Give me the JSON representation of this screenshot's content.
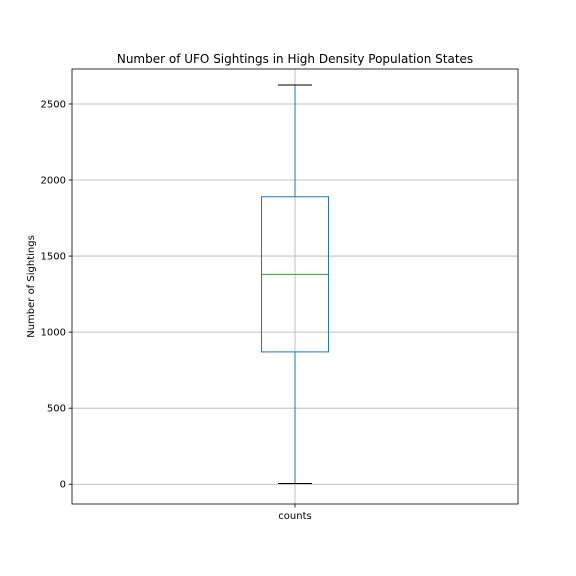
{
  "chart_data": {
    "type": "box",
    "title": "Number of UFO Sightings in High Density Population States",
    "xlabel": "",
    "ylabel": "Number of Sightings",
    "categories": [
      "counts"
    ],
    "ylim": [
      -130,
      2730
    ],
    "yticks": [
      0,
      500,
      1000,
      1500,
      2000,
      2500
    ],
    "grid": true,
    "series": [
      {
        "values": [
          {
            "whisker_low": 5,
            "q1": 870,
            "median": 1380,
            "q3": 1890,
            "whisker_high": 2625
          }
        ]
      }
    ],
    "colors": {
      "box": "#1f77b4",
      "median": "#2ca02c",
      "cap": "#000000",
      "grid": "#b0b0b0"
    }
  }
}
